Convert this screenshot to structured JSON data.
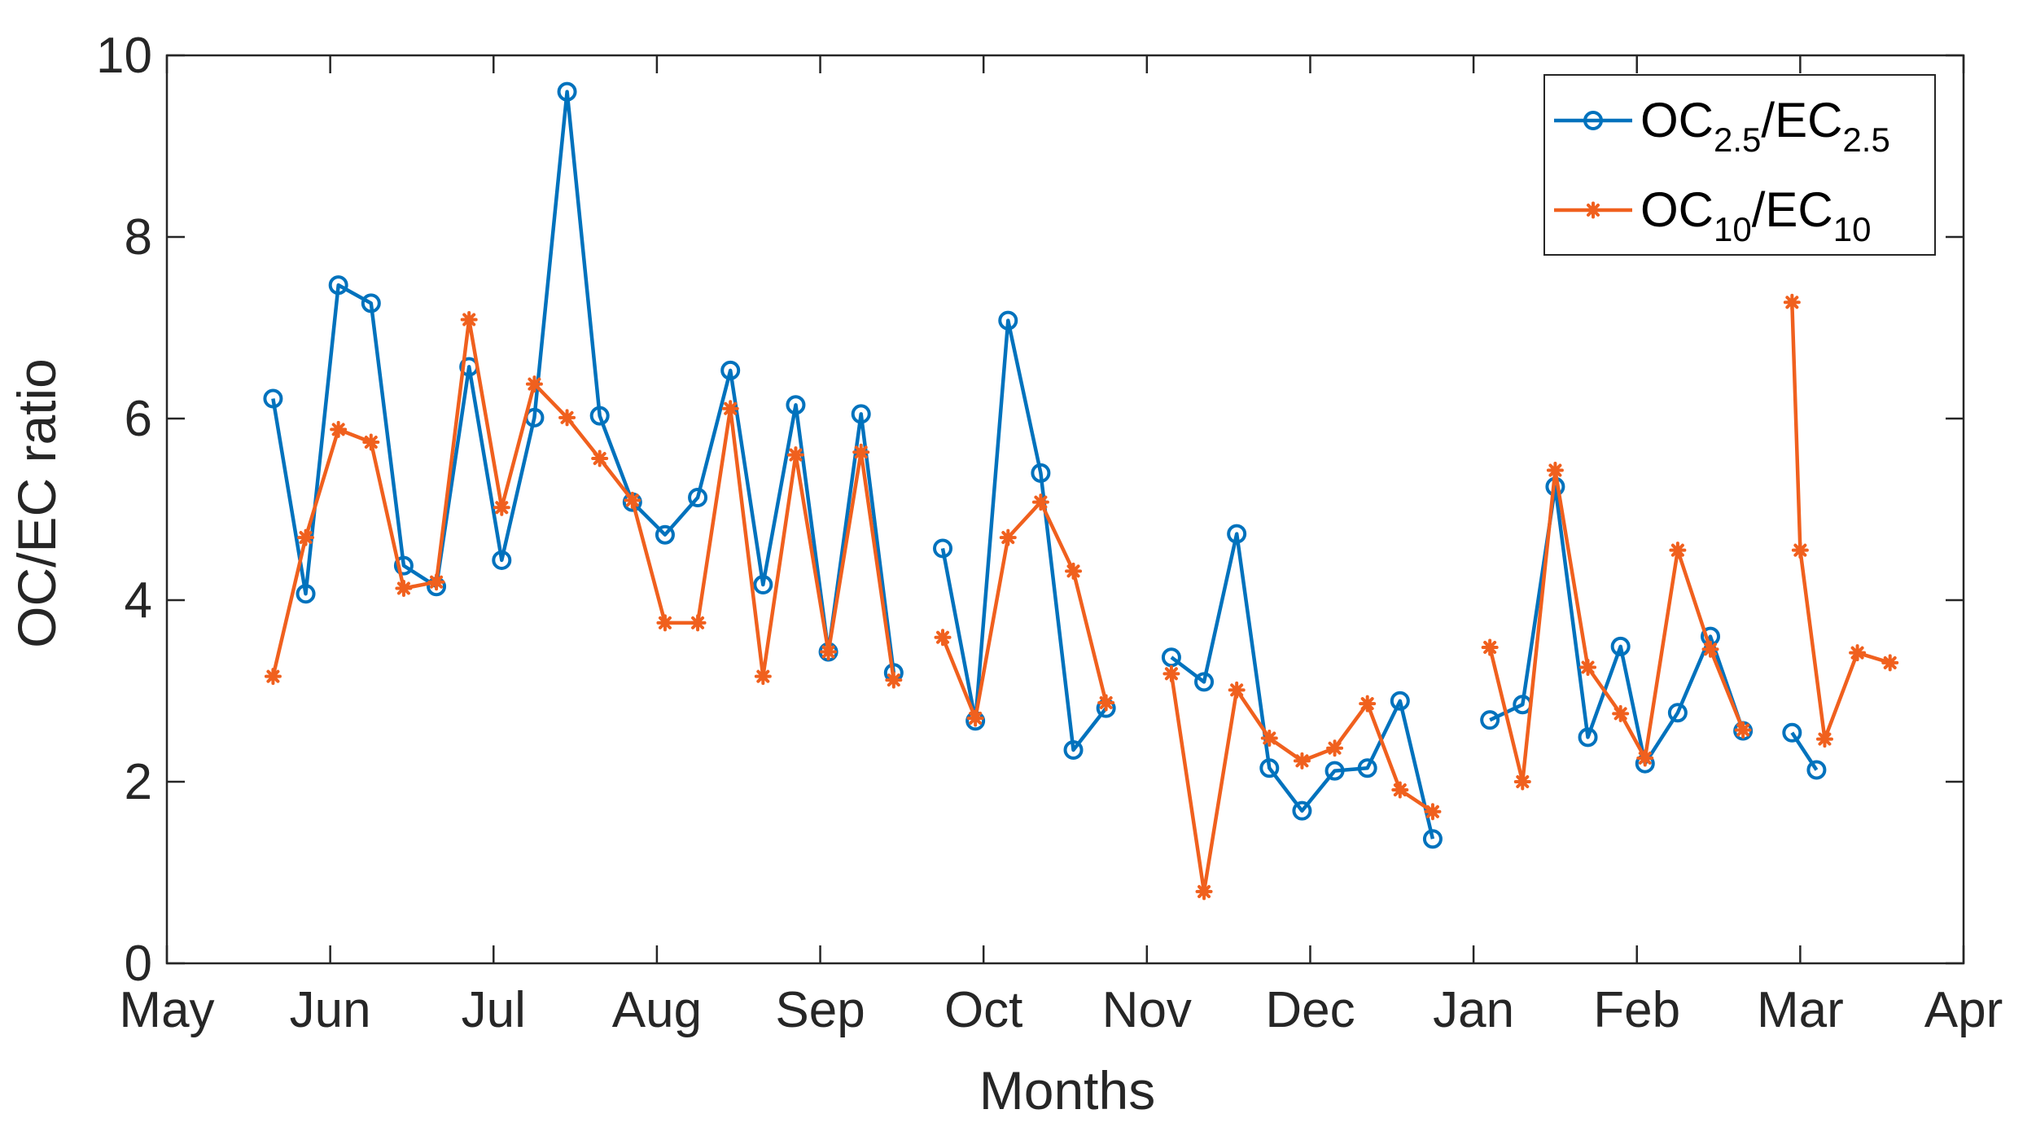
{
  "chart_data": {
    "type": "line",
    "title": "",
    "xlabel": "Months",
    "ylabel": "OC/EC ratio",
    "ylim": [
      0,
      10
    ],
    "yticks": [
      0,
      2,
      4,
      6,
      8,
      10
    ],
    "xlim": [
      0,
      11
    ],
    "xticks": [
      {
        "label": "May",
        "value": 0
      },
      {
        "label": "Jun",
        "value": 1
      },
      {
        "label": "Jul",
        "value": 2
      },
      {
        "label": "Aug",
        "value": 3
      },
      {
        "label": "Sep",
        "value": 4
      },
      {
        "label": "Oct",
        "value": 5
      },
      {
        "label": "Nov",
        "value": 6
      },
      {
        "label": "Dec",
        "value": 7
      },
      {
        "label": "Jan",
        "value": 8
      },
      {
        "label": "Feb",
        "value": 9
      },
      {
        "label": "Mar",
        "value": 10
      },
      {
        "label": "Apr",
        "value": 11
      }
    ],
    "legend_position": "top-right",
    "series": [
      {
        "name": "OC2.5/EC2.5",
        "legend_base1": "OC",
        "legend_sub1": "2.5",
        "legend_sep": "/",
        "legend_base2": "EC",
        "legend_sub2": "2.5",
        "color": "#0072BD",
        "marker": "circle",
        "segments": [
          [
            [
              0.65,
              6.22
            ],
            [
              0.85,
              4.07
            ],
            [
              1.05,
              7.47
            ],
            [
              1.25,
              7.27
            ],
            [
              1.45,
              4.38
            ],
            [
              1.65,
              4.15
            ],
            [
              1.85,
              6.57
            ],
            [
              2.05,
              4.44
            ],
            [
              2.25,
              6.01
            ],
            [
              2.45,
              9.6
            ],
            [
              2.65,
              6.03
            ],
            [
              2.85,
              5.08
            ],
            [
              3.05,
              4.72
            ],
            [
              3.25,
              5.13
            ],
            [
              3.45,
              6.53
            ],
            [
              3.65,
              4.17
            ],
            [
              3.85,
              6.15
            ],
            [
              4.05,
              3.43
            ],
            [
              4.25,
              6.05
            ],
            [
              4.45,
              3.2
            ]
          ],
          [
            [
              4.75,
              4.57
            ],
            [
              4.95,
              2.67
            ],
            [
              5.15,
              7.08
            ],
            [
              5.35,
              5.4
            ],
            [
              5.55,
              2.35
            ],
            [
              5.75,
              2.81
            ]
          ],
          [
            [
              6.15,
              3.37
            ],
            [
              6.35,
              3.1
            ],
            [
              6.55,
              4.73
            ],
            [
              6.75,
              2.15
            ],
            [
              6.95,
              1.68
            ],
            [
              7.15,
              2.12
            ],
            [
              7.35,
              2.15
            ],
            [
              7.55,
              2.89
            ],
            [
              7.75,
              1.37
            ]
          ],
          [
            [
              8.1,
              2.68
            ],
            [
              8.3,
              2.85
            ],
            [
              8.5,
              5.25
            ],
            [
              8.7,
              2.49
            ],
            [
              8.9,
              3.49
            ],
            [
              9.05,
              2.2
            ],
            [
              9.25,
              2.76
            ],
            [
              9.45,
              3.6
            ],
            [
              9.65,
              2.56
            ]
          ],
          [
            [
              9.95,
              2.54
            ],
            [
              10.1,
              2.13
            ]
          ]
        ]
      },
      {
        "name": "OC10/EC10",
        "legend_base1": "OC",
        "legend_sub1": "10",
        "legend_sep": "/",
        "legend_base2": "EC",
        "legend_sub2": "10",
        "color": "#F0601E",
        "marker": "asterisk",
        "segments": [
          [
            [
              0.65,
              3.16
            ],
            [
              0.85,
              4.69
            ],
            [
              1.05,
              5.88
            ],
            [
              1.25,
              5.74
            ],
            [
              1.45,
              4.13
            ],
            [
              1.65,
              4.2
            ],
            [
              1.85,
              7.09
            ],
            [
              2.05,
              5.02
            ],
            [
              2.25,
              6.38
            ],
            [
              2.45,
              6.01
            ],
            [
              2.65,
              5.56
            ],
            [
              2.85,
              5.1
            ],
            [
              3.05,
              3.75
            ],
            [
              3.25,
              3.75
            ],
            [
              3.45,
              6.11
            ],
            [
              3.65,
              3.16
            ],
            [
              3.85,
              5.6
            ],
            [
              4.05,
              3.43
            ],
            [
              4.25,
              5.63
            ],
            [
              4.45,
              3.12
            ]
          ],
          [
            [
              4.75,
              3.59
            ],
            [
              4.95,
              2.7
            ],
            [
              5.15,
              4.69
            ],
            [
              5.35,
              5.08
            ],
            [
              5.55,
              4.32
            ],
            [
              5.75,
              2.87
            ]
          ],
          [
            [
              6.15,
              3.19
            ],
            [
              6.35,
              0.79
            ],
            [
              6.55,
              3.01
            ],
            [
              6.75,
              2.48
            ],
            [
              6.95,
              2.23
            ],
            [
              7.15,
              2.37
            ],
            [
              7.35,
              2.86
            ],
            [
              7.55,
              1.91
            ],
            [
              7.75,
              1.67
            ]
          ],
          [
            [
              8.1,
              3.48
            ],
            [
              8.3,
              2.0
            ],
            [
              8.5,
              5.43
            ],
            [
              8.7,
              3.26
            ],
            [
              8.9,
              2.75
            ],
            [
              9.05,
              2.26
            ],
            [
              9.25,
              4.55
            ],
            [
              9.45,
              3.46
            ],
            [
              9.65,
              2.57
            ]
          ],
          [
            [
              9.95,
              7.28
            ],
            [
              10.0,
              4.55
            ],
            [
              10.15,
              2.47
            ],
            [
              10.35,
              3.42
            ],
            [
              10.55,
              3.31
            ]
          ]
        ]
      }
    ]
  }
}
